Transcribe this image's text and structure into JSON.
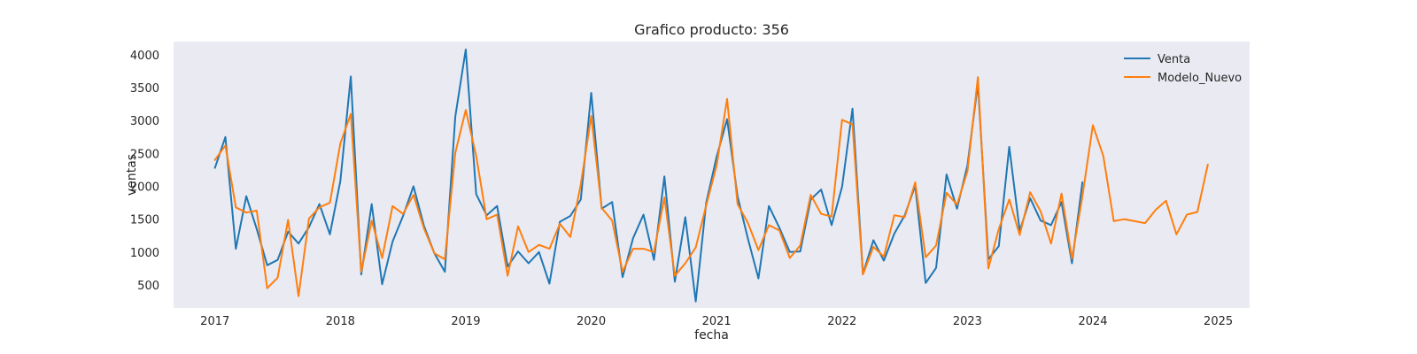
{
  "chart_data": {
    "type": "line",
    "title": "Grafico producto: 356",
    "xlabel": "fecha",
    "ylabel": "ventas",
    "xlim": [
      2016.67,
      2025.25
    ],
    "ylim": [
      150,
      4200
    ],
    "x_ticks": [
      2017,
      2018,
      2019,
      2020,
      2021,
      2022,
      2023,
      2024,
      2025
    ],
    "x_tick_labels": [
      "2017",
      "2018",
      "2019",
      "2020",
      "2021",
      "2022",
      "2023",
      "2024",
      "2025"
    ],
    "y_ticks": [
      500,
      1000,
      1500,
      2000,
      2500,
      3000,
      3500,
      4000
    ],
    "y_tick_labels": [
      "500",
      "1000",
      "1500",
      "2000",
      "2500",
      "3000",
      "3500",
      "4000"
    ],
    "grid": false,
    "background": "#eaeaf2",
    "legend_position": "top-right",
    "series": [
      {
        "name": "Venta",
        "color": "#1f77b4",
        "start_year": 2017,
        "values": [
          2280,
          2750,
          1050,
          1850,
          1350,
          800,
          880,
          1310,
          1130,
          1380,
          1730,
          1270,
          2080,
          3670,
          660,
          1730,
          510,
          1160,
          1550,
          2000,
          1400,
          980,
          700,
          3060,
          4080,
          1880,
          1560,
          1700,
          780,
          1010,
          830,
          1000,
          520,
          1460,
          1550,
          1800,
          3420,
          1660,
          1760,
          620,
          1210,
          1570,
          880,
          2150,
          550,
          1530,
          250,
          1750,
          2450,
          3020,
          1850,
          1200,
          600,
          1700,
          1370,
          1000,
          1010,
          1800,
          1950,
          1410,
          1990,
          3180,
          670,
          1180,
          870,
          1280,
          1560,
          2010,
          530,
          760,
          2180,
          1660,
          2320,
          3560,
          890,
          1090,
          2600,
          1320,
          1820,
          1480,
          1410,
          1760,
          830,
          2060
        ]
      },
      {
        "name": "Modelo_Nuevo",
        "color": "#ff7f0e",
        "start_year": 2017,
        "values": [
          2400,
          2620,
          1680,
          1600,
          1630,
          450,
          610,
          1490,
          330,
          1510,
          1680,
          1750,
          2650,
          3100,
          700,
          1480,
          910,
          1700,
          1580,
          1870,
          1360,
          980,
          890,
          2510,
          3160,
          2460,
          1500,
          1570,
          640,
          1390,
          1000,
          1110,
          1050,
          1430,
          1230,
          2030,
          3070,
          1670,
          1480,
          700,
          1050,
          1050,
          1000,
          1830,
          640,
          830,
          1070,
          1710,
          2320,
          3330,
          1730,
          1440,
          1030,
          1410,
          1330,
          910,
          1100,
          1870,
          1580,
          1540,
          3010,
          2940,
          660,
          1080,
          930,
          1560,
          1530,
          2060,
          920,
          1100,
          1900,
          1720,
          2230,
          3660,
          750,
          1350,
          1800,
          1260,
          1910,
          1620,
          1130,
          1890,
          900,
          1850,
          2930,
          2460,
          1470,
          1500,
          1470,
          1440,
          1640,
          1780,
          1270,
          1570,
          1610,
          2330
        ]
      }
    ]
  }
}
